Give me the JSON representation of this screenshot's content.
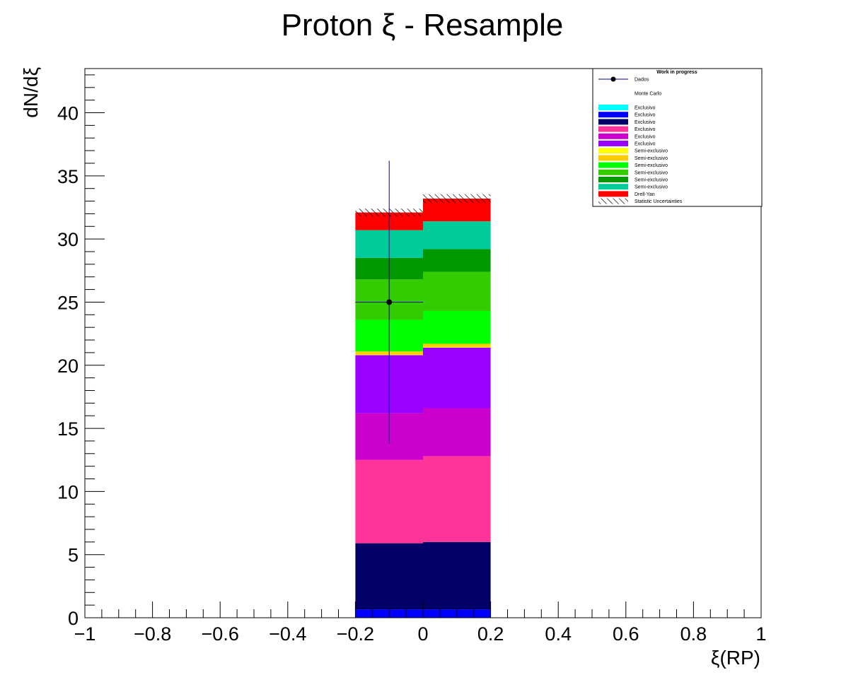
{
  "chart_data": {
    "type": "bar",
    "stacked": true,
    "title": "Proton ξ - Resample",
    "xlabel": "ξ(RP)",
    "ylabel": "dN/dξ",
    "xlim": [
      -1,
      1
    ],
    "ylim": [
      0,
      43.5
    ],
    "x_ticks": [
      "−1",
      "−0.8",
      "−0.6",
      "−0.4",
      "−0.2",
      "0",
      "0.2",
      "0.4",
      "0.6",
      "0.8",
      "1"
    ],
    "y_ticks": [
      "0",
      "5",
      "10",
      "15",
      "20",
      "25",
      "30",
      "35",
      "40"
    ],
    "bins": [
      {
        "x_low": -0.2,
        "x_high": 0.0
      },
      {
        "x_low": 0.0,
        "x_high": 0.2
      }
    ],
    "series": [
      {
        "name": "Exclusivo",
        "color": "#00ffff",
        "values": [
          0.0,
          0.0
        ]
      },
      {
        "name": "Exclusivo",
        "color": "#0000ff",
        "values": [
          0.65,
          0.65
        ]
      },
      {
        "name": "Exclusivo",
        "color": "#000066",
        "values": [
          5.25,
          5.35
        ]
      },
      {
        "name": "Exclusivo",
        "color": "#ff3399",
        "values": [
          6.6,
          6.8
        ]
      },
      {
        "name": "Exclusivo",
        "color": "#cc00cc",
        "values": [
          3.7,
          3.8
        ]
      },
      {
        "name": "Exclusivo",
        "color": "#9900ff",
        "values": [
          4.6,
          4.8
        ]
      },
      {
        "name": "Semi-exclusivo",
        "color": "#ffff00",
        "values": [
          0.05,
          0.05
        ]
      },
      {
        "name": "Semi-exclusivo",
        "color": "#ffcc00",
        "values": [
          0.25,
          0.25
        ]
      },
      {
        "name": "Semi-exclusivo",
        "color": "#00ff00",
        "values": [
          2.5,
          2.6
        ]
      },
      {
        "name": "Semi-exclusivo",
        "color": "#33cc00",
        "values": [
          3.2,
          3.1
        ]
      },
      {
        "name": "Semi-exclusivo",
        "color": "#009900",
        "values": [
          1.7,
          1.8
        ]
      },
      {
        "name": "Semi-exclusivo",
        "color": "#00cc99",
        "values": [
          2.2,
          2.2
        ]
      },
      {
        "name": "Drell-Yan",
        "color": "#ff0000",
        "values": [
          1.4,
          1.8
        ]
      }
    ],
    "uncertainty": {
      "name": "Statistic Uncertainties",
      "values": [
        0.3,
        0.35
      ]
    },
    "data_points": {
      "name": "Dados",
      "x": [
        -0.1
      ],
      "y": [
        25.0
      ],
      "x_err": [
        0.1
      ],
      "y_err_up": [
        11.2
      ],
      "y_err_down": [
        11.2
      ],
      "color": "#000099"
    },
    "legend": {
      "position": "top-right",
      "header": "Work in progress",
      "mc_label": "Monte Carlo"
    },
    "grid": false
  }
}
